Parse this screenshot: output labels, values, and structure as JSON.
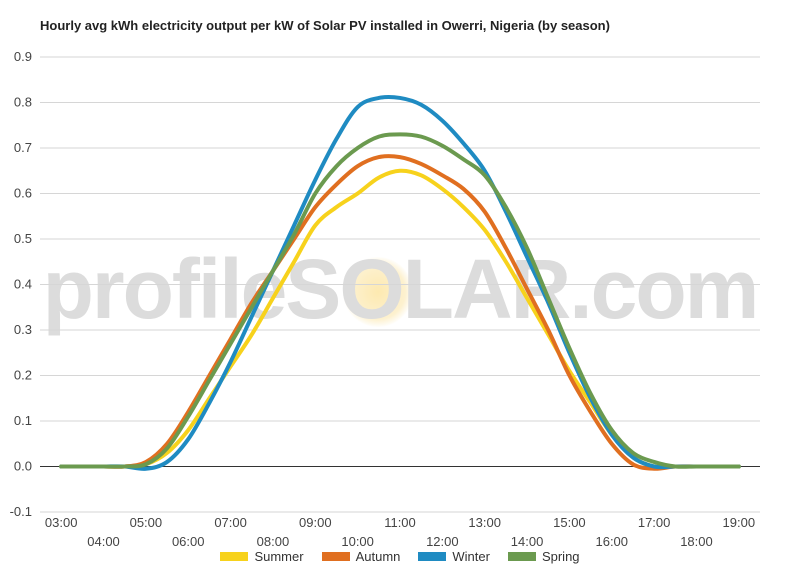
{
  "chart_data": {
    "type": "line",
    "title": "Hourly avg kWh electricity output per kW of Solar PV installed in Owerri, Nigeria (by season)",
    "watermark": {
      "left": "profileS",
      "mid": "O",
      "right": "LAR.com"
    },
    "ylim": [
      -0.1,
      0.9
    ],
    "y_ticks": [
      "0.9",
      "0.8",
      "0.7",
      "0.6",
      "0.5",
      "0.4",
      "0.3",
      "0.2",
      "0.1",
      "0.0",
      "-0.1"
    ],
    "y_tick_values": [
      0.9,
      0.8,
      0.7,
      0.6,
      0.5,
      0.4,
      0.3,
      0.2,
      0.1,
      0.0,
      -0.1
    ],
    "x_ticks_upper": [
      "03:00",
      "05:00",
      "07:00",
      "09:00",
      "11:00",
      "13:00",
      "15:00",
      "17:00",
      "19:00"
    ],
    "x_ticks_lower": [
      "04:00",
      "06:00",
      "08:00",
      "10:00",
      "12:00",
      "14:00",
      "16:00",
      "18:00"
    ],
    "x": [
      3,
      3.5,
      4,
      4.5,
      5,
      5.5,
      6,
      6.5,
      7,
      7.5,
      8,
      8.5,
      9,
      9.5,
      10,
      10.5,
      11,
      11.5,
      12,
      12.5,
      13,
      13.5,
      14,
      14.5,
      15,
      15.5,
      16,
      16.5,
      17,
      17.5,
      18,
      18.5,
      19
    ],
    "series": [
      {
        "name": "Summer",
        "color": "#f7d21c",
        "values": [
          0,
          0,
          0,
          0,
          0.005,
          0.03,
          0.08,
          0.15,
          0.22,
          0.29,
          0.37,
          0.45,
          0.53,
          0.57,
          0.6,
          0.635,
          0.65,
          0.64,
          0.61,
          0.57,
          0.52,
          0.45,
          0.37,
          0.29,
          0.21,
          0.14,
          0.07,
          0.02,
          0,
          0,
          0,
          0,
          0
        ]
      },
      {
        "name": "Autumn",
        "color": "#e06f20",
        "values": [
          0,
          0,
          0,
          0,
          0.01,
          0.05,
          0.12,
          0.2,
          0.28,
          0.36,
          0.43,
          0.5,
          0.57,
          0.62,
          0.66,
          0.68,
          0.68,
          0.665,
          0.64,
          0.61,
          0.56,
          0.48,
          0.39,
          0.3,
          0.2,
          0.12,
          0.05,
          0.005,
          -0.005,
          0,
          0,
          0,
          0
        ]
      },
      {
        "name": "Winter",
        "color": "#1f8bc2",
        "values": [
          0,
          0,
          0,
          0,
          -0.005,
          0.01,
          0.06,
          0.14,
          0.23,
          0.33,
          0.43,
          0.53,
          0.63,
          0.72,
          0.79,
          0.81,
          0.81,
          0.795,
          0.76,
          0.71,
          0.65,
          0.56,
          0.46,
          0.36,
          0.25,
          0.15,
          0.07,
          0.02,
          0,
          0,
          0,
          0,
          0
        ]
      },
      {
        "name": "Spring",
        "color": "#6b9a4f",
        "values": [
          0,
          0,
          0,
          0,
          0.005,
          0.04,
          0.11,
          0.19,
          0.27,
          0.35,
          0.43,
          0.51,
          0.6,
          0.66,
          0.7,
          0.725,
          0.73,
          0.725,
          0.705,
          0.675,
          0.64,
          0.57,
          0.48,
          0.37,
          0.26,
          0.16,
          0.08,
          0.03,
          0.01,
          0,
          0,
          0,
          0
        ]
      }
    ],
    "grid": true,
    "legend_position": "bottom"
  }
}
